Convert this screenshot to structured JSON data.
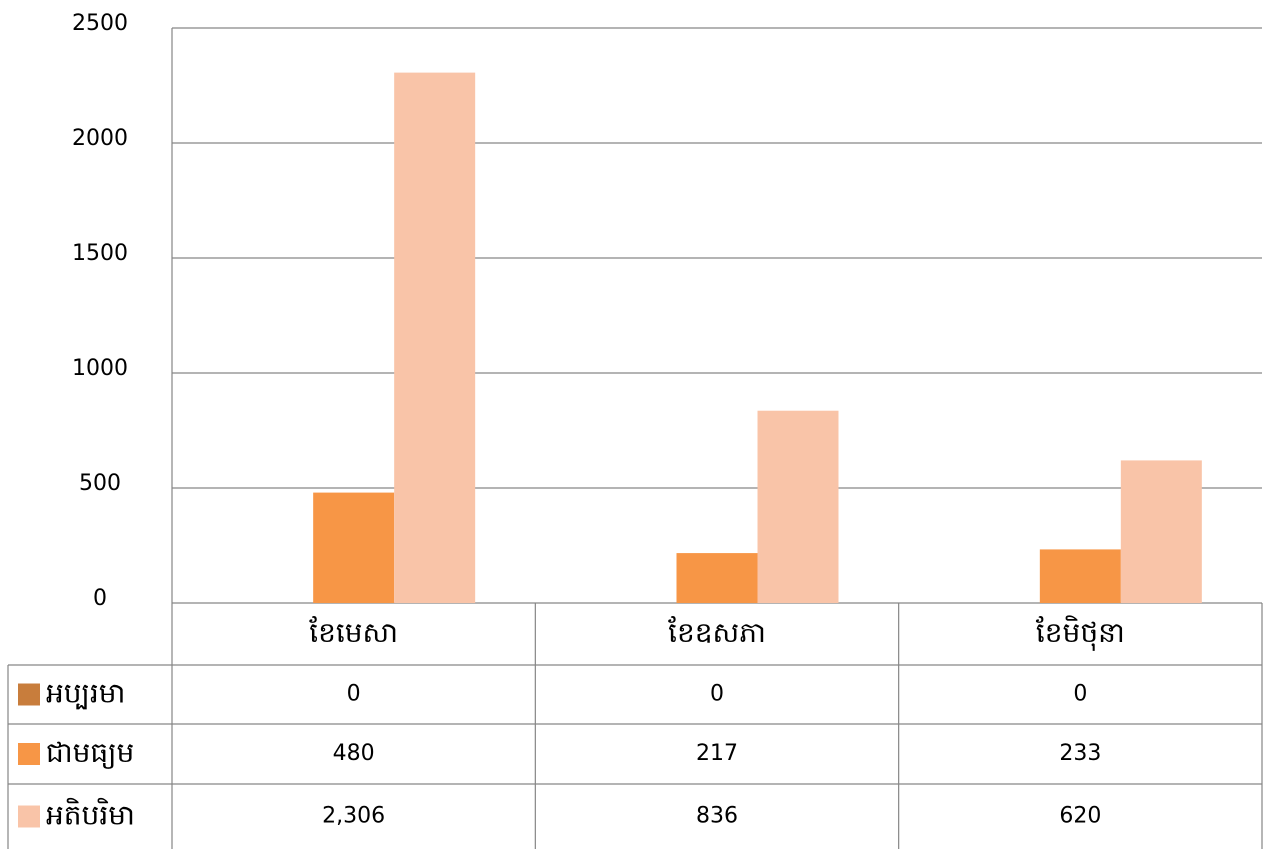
{
  "chart_data": {
    "type": "bar",
    "categories": [
      "ខែមេសា",
      "ខែឧសភា",
      "ខែមិថុនា"
    ],
    "series": [
      {
        "name": "អប្បរមា",
        "color": "#c87d3c",
        "values": [
          0,
          0,
          0
        ]
      },
      {
        "name": "ជាមធ្យម",
        "color": "#f79646",
        "values": [
          480,
          217,
          233
        ]
      },
      {
        "name": "អតិបរិមា",
        "color": "#f9c4a8",
        "values": [
          2306,
          836,
          620
        ],
        "value_labels": [
          "2,306",
          "836",
          "620"
        ]
      }
    ],
    "ylim": [
      0,
      2500
    ],
    "yticks": [
      0,
      500,
      1000,
      1500,
      2000,
      2500
    ],
    "grid": true
  }
}
